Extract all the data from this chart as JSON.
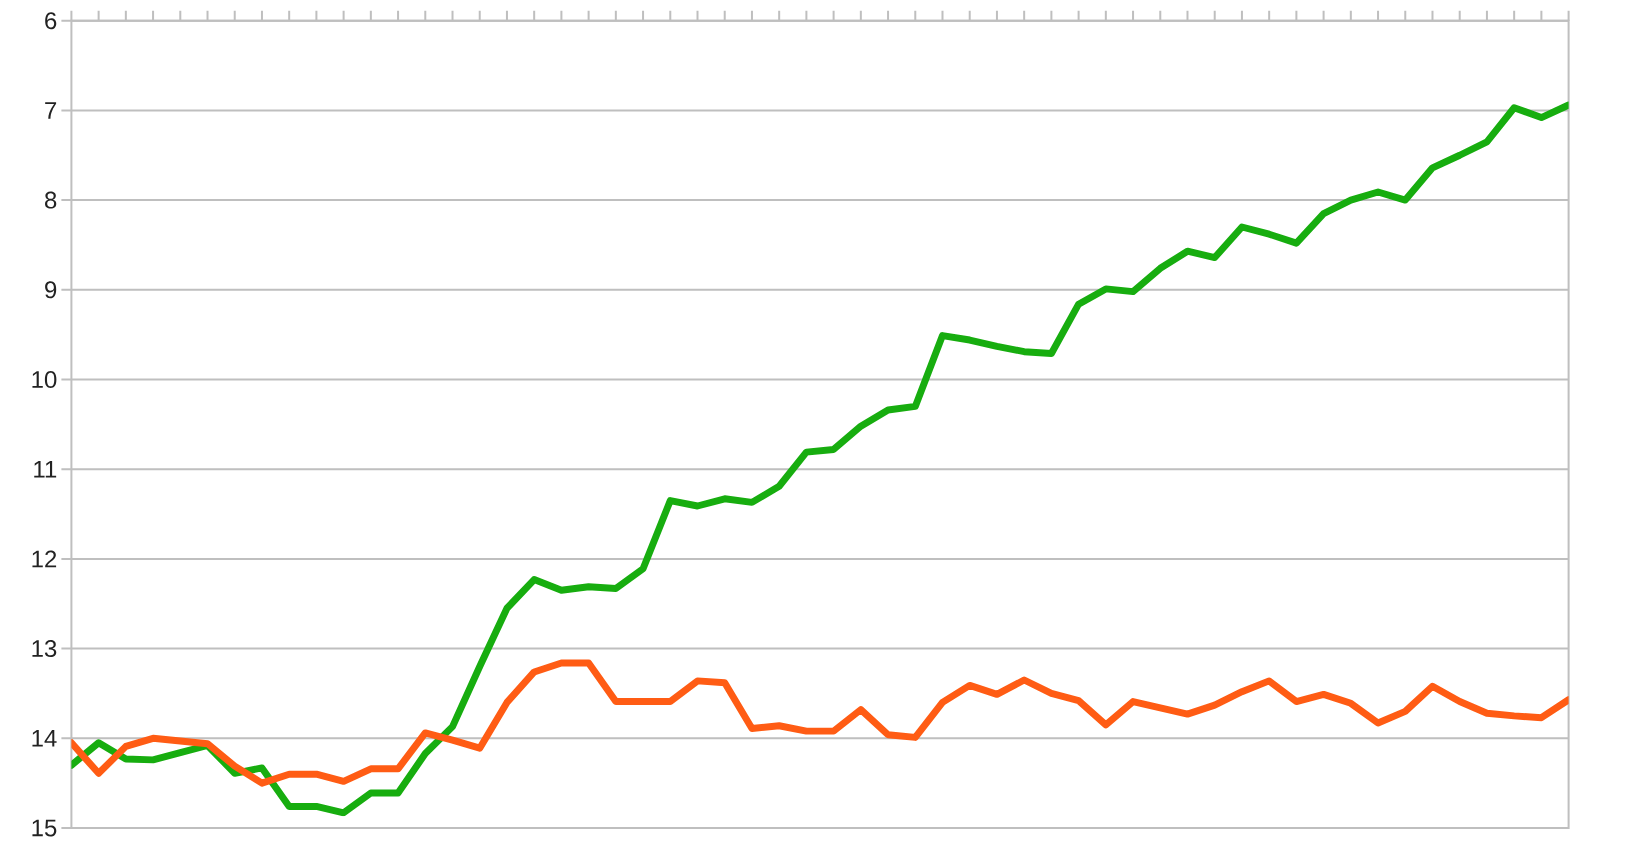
{
  "chart_data": {
    "type": "line",
    "categories": [
      null,
      null,
      null,
      null,
      null,
      null,
      null,
      null,
      null,
      null,
      null,
      null,
      null,
      null,
      null,
      null,
      null,
      null,
      null,
      null,
      null,
      null,
      null,
      null,
      null,
      null,
      null,
      null,
      null,
      null,
      null,
      null,
      null,
      null,
      null,
      null,
      null,
      null,
      null,
      null,
      null,
      null,
      null,
      null,
      null,
      null,
      null,
      null,
      null,
      null,
      null,
      null,
      null,
      null,
      null,
      null
    ],
    "series": [
      {
        "color": "#17ad0f",
        "values": [
          14.3,
          14.05,
          14.23,
          14.24,
          14.16,
          14.08,
          14.39,
          14.33,
          14.76,
          14.76,
          14.83,
          14.61,
          14.61,
          14.17,
          13.87,
          13.2,
          12.55,
          12.23,
          12.35,
          12.31,
          12.33,
          12.11,
          11.35,
          11.41,
          11.33,
          11.37,
          11.19,
          10.81,
          10.78,
          10.52,
          10.34,
          10.3,
          9.51,
          9.56,
          9.63,
          9.69,
          9.71,
          9.16,
          8.99,
          9.02,
          8.76,
          8.57,
          8.64,
          8.3,
          8.38,
          8.48,
          8.15,
          8.0,
          7.91,
          8.0,
          7.64,
          7.5,
          7.35,
          6.97,
          7.08,
          6.94
        ]
      },
      {
        "color": "#ff5c14",
        "values": [
          14.05,
          14.39,
          14.09,
          14.0,
          14.03,
          14.06,
          14.31,
          14.5,
          14.4,
          14.4,
          14.48,
          14.34,
          14.34,
          13.94,
          14.02,
          14.11,
          13.6,
          13.26,
          13.16,
          13.16,
          13.59,
          13.59,
          13.59,
          13.36,
          13.38,
          13.89,
          13.86,
          13.92,
          13.92,
          13.68,
          13.96,
          13.99,
          13.6,
          13.41,
          13.51,
          13.35,
          13.5,
          13.58,
          13.85,
          13.59,
          13.66,
          13.73,
          13.63,
          13.48,
          13.36,
          13.59,
          13.51,
          13.61,
          13.83,
          13.7,
          13.42,
          13.59,
          13.72,
          13.75,
          13.77,
          13.57
        ]
      }
    ],
    "ylim": [
      15,
      6
    ],
    "yticks": [
      6,
      7,
      8,
      9,
      10,
      11,
      12,
      13,
      14,
      15
    ],
    "grid": "y",
    "tick_labels": "y"
  }
}
